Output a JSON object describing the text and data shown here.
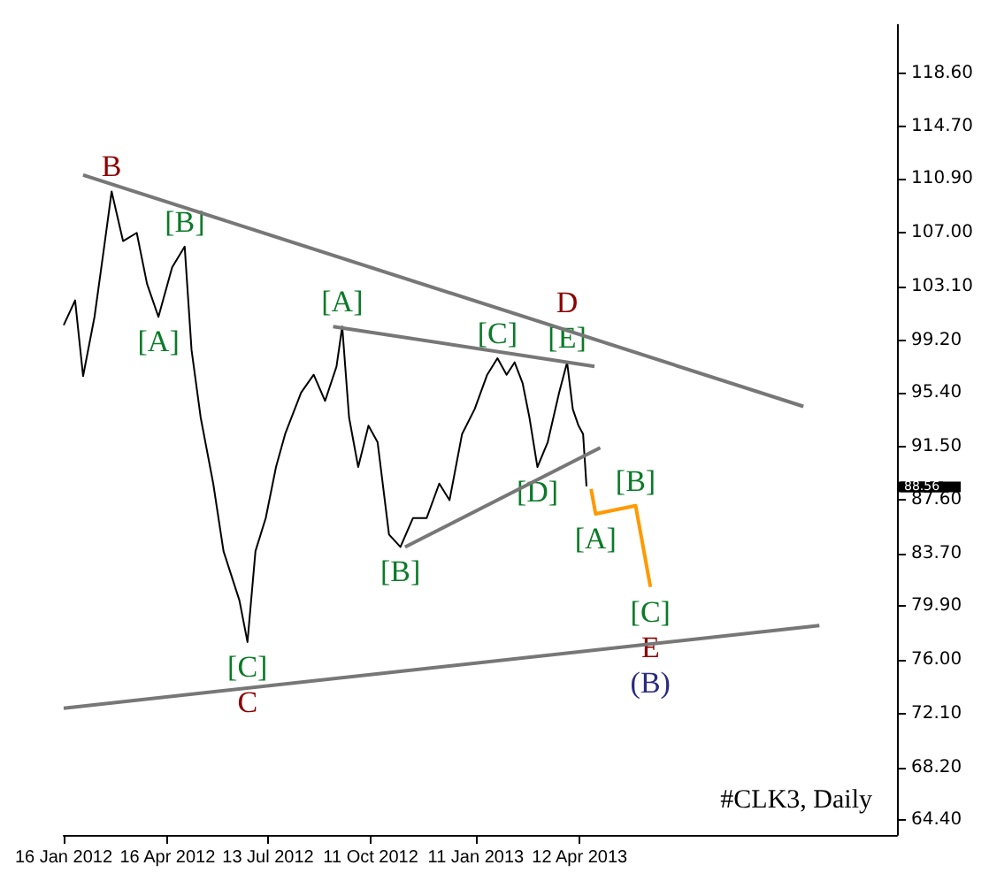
{
  "chart_data": {
    "type": "line",
    "grid": false,
    "marker": "none",
    "line_style": "solid",
    "xlim": [
      "2012-01-16",
      "2014-01-15"
    ],
    "xticks": [
      {
        "value": "2012-01-16",
        "label": "16 Jan 2012"
      },
      {
        "value": "2012-04-16",
        "label": "16 Apr 2012"
      },
      {
        "value": "2012-07-13",
        "label": "13 Jul 2012"
      },
      {
        "value": "2012-10-11",
        "label": "11 Oct 2012"
      },
      {
        "value": "2013-01-11",
        "label": "11 Jan 2013"
      },
      {
        "value": "2013-04-12",
        "label": "12 Apr 2013"
      }
    ],
    "ylim": [
      63.3,
      122.1
    ],
    "yticks": [
      {
        "value": 64.4,
        "label": "64.40"
      },
      {
        "value": 68.2,
        "label": "68.20"
      },
      {
        "value": 72.1,
        "label": "72.10"
      },
      {
        "value": 76,
        "label": "76.00"
      },
      {
        "value": 79.9,
        "label": "79.90"
      },
      {
        "value": 83.7,
        "label": "83.70"
      },
      {
        "value": 87.6,
        "label": "87.60"
      },
      {
        "value": 91.5,
        "label": "91.50"
      },
      {
        "value": 95.4,
        "label": "95.40"
      },
      {
        "value": 99.2,
        "label": "99.20"
      },
      {
        "value": 103.1,
        "label": "103.10"
      },
      {
        "value": 107,
        "label": "107.00"
      },
      {
        "value": 110.9,
        "label": "110.90"
      },
      {
        "value": 114.7,
        "label": "114.70"
      },
      {
        "value": 118.6,
        "label": "118.60"
      }
    ],
    "series": [
      {
        "color": "#000000",
        "x": [
          "2012-01-16",
          "2012-01-26",
          "2012-02-02",
          "2012-02-12",
          "2012-02-20",
          "2012-02-27",
          "2012-03-08",
          "2012-03-20",
          "2012-03-29",
          "2012-04-08",
          "2012-04-20",
          "2012-05-01",
          "2012-05-07",
          "2012-05-15",
          "2012-05-26",
          "2012-06-04",
          "2012-06-11",
          "2012-06-18",
          "2012-06-25",
          "2012-07-02",
          "2012-07-11",
          "2012-07-20",
          "2012-07-28",
          "2012-08-11",
          "2012-08-22",
          "2012-09-01",
          "2012-09-11",
          "2012-09-16",
          "2012-09-22",
          "2012-09-30",
          "2012-10-09",
          "2012-10-17",
          "2012-10-27",
          "2012-11-06",
          "2012-11-17",
          "2012-11-29",
          "2012-12-10",
          "2012-12-19",
          "2012-12-30",
          "2013-01-10",
          "2013-01-21",
          "2013-01-30",
          "2013-02-07",
          "2013-02-14",
          "2013-02-21",
          "2013-02-27",
          "2013-03-06",
          "2013-03-15",
          "2013-03-25",
          "2013-04-01",
          "2013-04-06",
          "2013-04-11",
          "2013-04-15",
          "2013-04-18"
        ],
        "values": [
          100.3,
          102.1,
          96.6,
          100.9,
          105.7,
          110.0,
          106.4,
          107.0,
          103.3,
          100.9,
          104.5,
          106.0,
          98.5,
          93.6,
          88.8,
          83.9,
          82.1,
          80.3,
          77.3,
          83.9,
          86.3,
          90.0,
          92.4,
          95.4,
          96.7,
          94.8,
          97.3,
          100.2,
          93.6,
          90.0,
          93.0,
          91.8,
          85.1,
          84.2,
          86.3,
          86.3,
          88.8,
          87.6,
          92.4,
          94.2,
          96.7,
          97.9,
          96.7,
          97.6,
          96.1,
          93.6,
          90.0,
          91.8,
          95.4,
          97.6,
          94.2,
          93.0,
          92.4,
          88.6
        ]
      },
      {
        "color": "#ff9900",
        "x": [
          "2013-04-22",
          "2013-04-26",
          "2013-05-31",
          "2013-06-13"
        ],
        "values": [
          88.4,
          86.6,
          87.2,
          81.3
        ]
      },
      {
        "color": "#777777",
        "x": [
          "2012-02-02",
          "2013-10-25"
        ],
        "values": [
          111.2,
          94.4
        ]
      },
      {
        "color": "#777777",
        "x": [
          "2012-01-16",
          "2013-11-08"
        ],
        "values": [
          72.5,
          78.5
        ]
      },
      {
        "color": "#777777",
        "x": [
          "2012-09-08",
          "2013-04-25"
        ],
        "values": [
          100.2,
          97.3
        ]
      },
      {
        "color": "#777777",
        "x": [
          "2012-11-10",
          "2013-04-30"
        ],
        "values": [
          84.2,
          91.4
        ]
      }
    ],
    "ref_lines": [
      {
        "axis": "y",
        "value": 88.56,
        "label": "88.56"
      }
    ],
    "annotations": [
      {
        "text": "B",
        "x": "2012-02-27",
        "y": 110.0
      },
      {
        "text": "[B]",
        "x": "2012-05-01",
        "y": 106.0
      },
      {
        "text": "[A]",
        "x": "2012-04-08",
        "y": 100.9
      },
      {
        "text": "[A]",
        "x": "2012-09-16",
        "y": 100.2
      },
      {
        "text": "[C]",
        "x": "2013-01-30",
        "y": 97.9
      },
      {
        "text": "[E]",
        "x": "2013-04-01",
        "y": 97.6
      },
      {
        "text": "D",
        "x": "2013-04-01",
        "y": 97.6
      },
      {
        "text": "[D]",
        "x": "2013-03-06",
        "y": 90.0
      },
      {
        "text": "[B]",
        "x": "2012-11-06",
        "y": 84.2
      },
      {
        "text": "[C]",
        "x": "2012-06-25",
        "y": 77.3
      },
      {
        "text": "C",
        "x": "2012-06-25",
        "y": 77.3
      },
      {
        "text": "[A]",
        "x": "2013-04-26",
        "y": 86.6
      },
      {
        "text": "[B]",
        "x": "2013-05-31",
        "y": 87.2
      },
      {
        "text": "[C]",
        "x": "2013-06-13",
        "y": 81.3
      },
      {
        "text": "E",
        "x": "2013-06-13",
        "y": 81.3
      },
      {
        "text": "(B)",
        "x": "2013-06-13",
        "y": 81.3
      },
      "#CLK3, Daily"
    ]
  }
}
